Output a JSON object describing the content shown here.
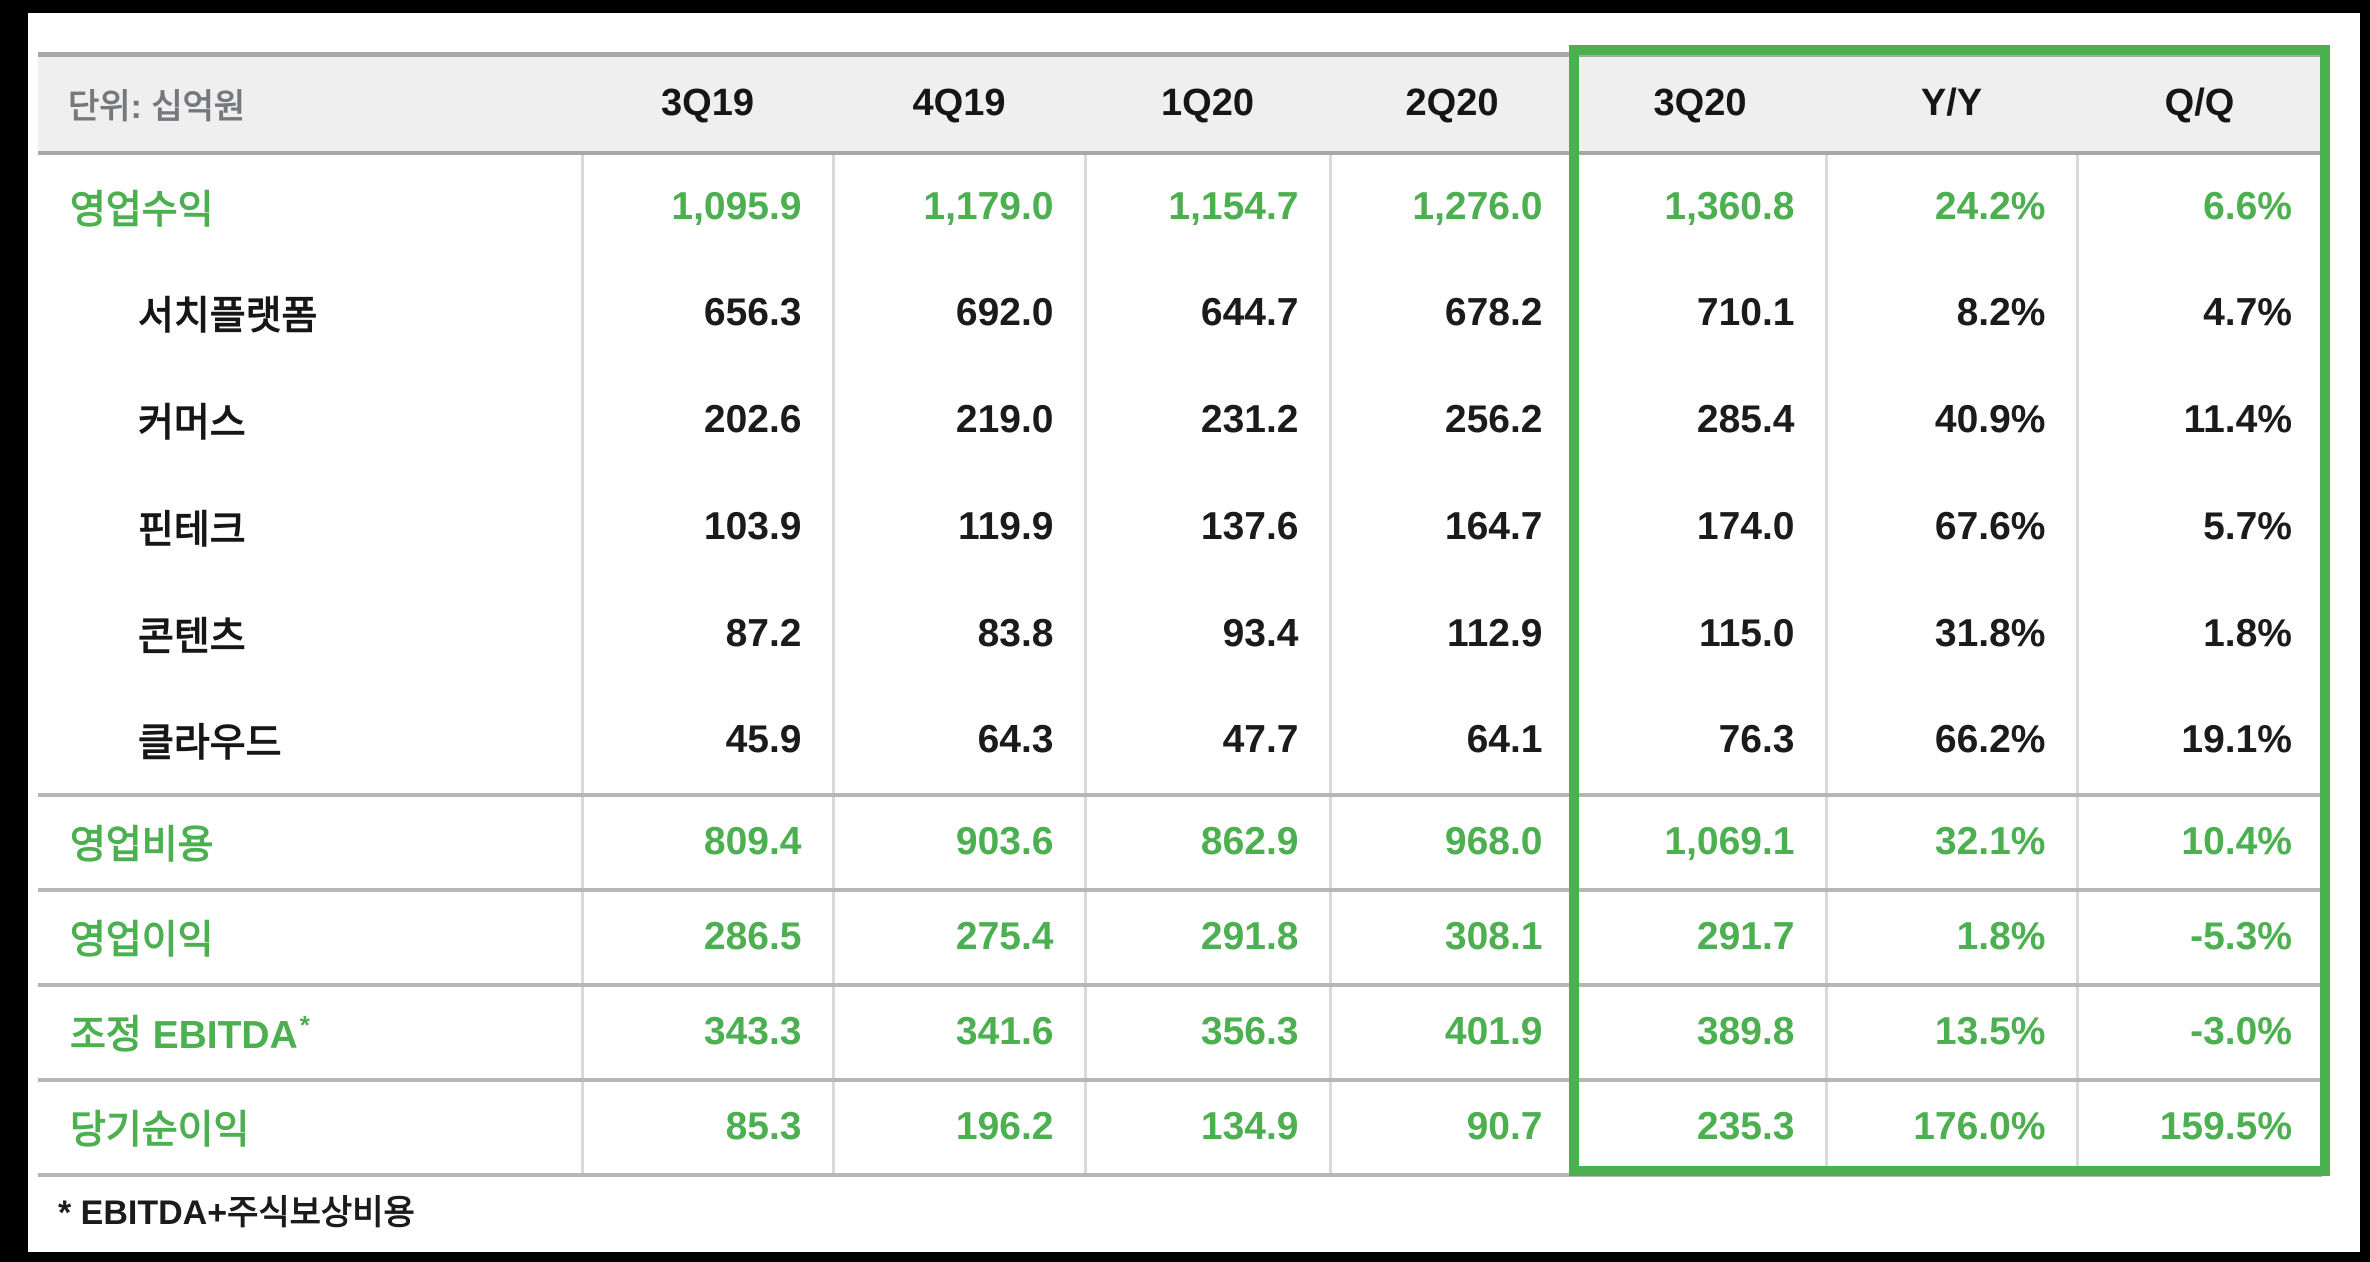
{
  "colors": {
    "accent_green": "#4caf50",
    "header_bg": "#efefef",
    "frame_black": "#000000"
  },
  "table": {
    "unit_label": "단위: 십억원",
    "columns": [
      "3Q19",
      "4Q19",
      "1Q20",
      "2Q20",
      "3Q20",
      "Y/Y",
      "Q/Q"
    ],
    "highlighted_columns": [
      "3Q20",
      "Y/Y",
      "Q/Q"
    ],
    "rows": [
      {
        "label": "영업수익",
        "type": "total",
        "values": [
          "1,095.9",
          "1,179.0",
          "1,154.7",
          "1,276.0",
          "1,360.8",
          "24.2%",
          "6.6%"
        ]
      },
      {
        "label": "서치플랫폼",
        "type": "sub",
        "values": [
          "656.3",
          "692.0",
          "644.7",
          "678.2",
          "710.1",
          "8.2%",
          "4.7%"
        ]
      },
      {
        "label": "커머스",
        "type": "sub",
        "values": [
          "202.6",
          "219.0",
          "231.2",
          "256.2",
          "285.4",
          "40.9%",
          "11.4%"
        ]
      },
      {
        "label": "핀테크",
        "type": "sub",
        "values": [
          "103.9",
          "119.9",
          "137.6",
          "164.7",
          "174.0",
          "67.6%",
          "5.7%"
        ]
      },
      {
        "label": "콘텐츠",
        "type": "sub",
        "values": [
          "87.2",
          "83.8",
          "93.4",
          "112.9",
          "115.0",
          "31.8%",
          "1.8%"
        ]
      },
      {
        "label": "클라우드",
        "type": "sub",
        "values": [
          "45.9",
          "64.3",
          "47.7",
          "64.1",
          "76.3",
          "66.2%",
          "19.1%"
        ]
      },
      {
        "label": "영업비용",
        "type": "section",
        "values": [
          "809.4",
          "903.6",
          "862.9",
          "968.0",
          "1,069.1",
          "32.1%",
          "10.4%"
        ]
      },
      {
        "label": "영업이익",
        "type": "section",
        "values": [
          "286.5",
          "275.4",
          "291.8",
          "308.1",
          "291.7",
          "1.8%",
          "-5.3%"
        ]
      },
      {
        "label": "조정 EBITDA",
        "sup": "*",
        "type": "section",
        "values": [
          "343.3",
          "341.6",
          "356.3",
          "401.9",
          "389.8",
          "13.5%",
          "-3.0%"
        ]
      },
      {
        "label": "당기순이익",
        "type": "section",
        "values": [
          "85.3",
          "196.2",
          "134.9",
          "90.7",
          "235.3",
          "176.0%",
          "159.5%"
        ]
      }
    ],
    "footnote": "* EBITDA+주식보상비용"
  }
}
